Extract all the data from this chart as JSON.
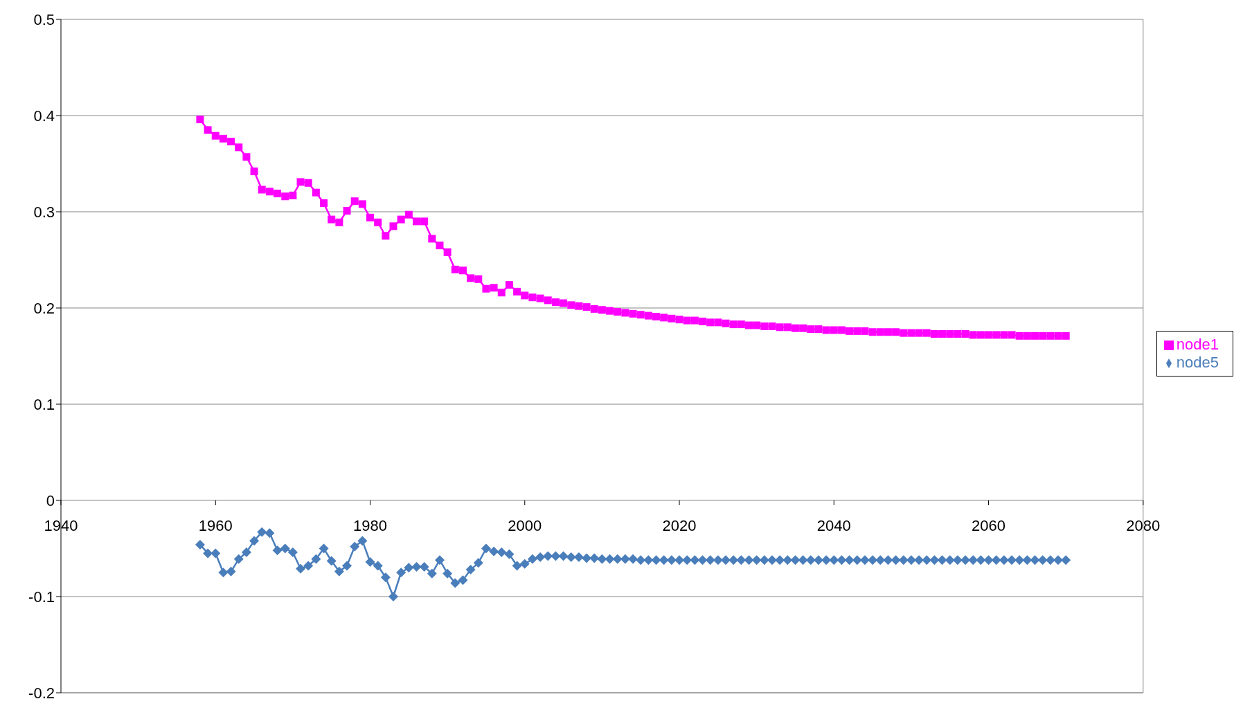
{
  "chart_data": {
    "type": "line",
    "x": [
      1958,
      1959,
      1960,
      1961,
      1962,
      1963,
      1964,
      1965,
      1966,
      1967,
      1968,
      1969,
      1970,
      1971,
      1972,
      1973,
      1974,
      1975,
      1976,
      1977,
      1978,
      1979,
      1980,
      1981,
      1982,
      1983,
      1984,
      1985,
      1986,
      1987,
      1988,
      1989,
      1990,
      1991,
      1992,
      1993,
      1994,
      1995,
      1996,
      1997,
      1998,
      1999,
      2000,
      2001,
      2002,
      2003,
      2004,
      2005,
      2006,
      2007,
      2008,
      2009,
      2010,
      2011,
      2012,
      2013,
      2014,
      2015,
      2016,
      2017,
      2018,
      2019,
      2020,
      2021,
      2022,
      2023,
      2024,
      2025,
      2026,
      2027,
      2028,
      2029,
      2030,
      2031,
      2032,
      2033,
      2034,
      2035,
      2036,
      2037,
      2038,
      2039,
      2040,
      2041,
      2042,
      2043,
      2044,
      2045,
      2046,
      2047,
      2048,
      2049,
      2050,
      2051,
      2052,
      2053,
      2054,
      2055,
      2056,
      2057,
      2058,
      2059,
      2060,
      2061,
      2062,
      2063,
      2064,
      2065,
      2066,
      2067,
      2068,
      2069,
      2070
    ],
    "series": [
      {
        "name": "node1",
        "color": "#ff00ff",
        "marker": "square",
        "values": [
          0.396,
          0.385,
          0.379,
          0.376,
          0.373,
          0.367,
          0.357,
          0.342,
          0.323,
          0.321,
          0.319,
          0.316,
          0.317,
          0.331,
          0.33,
          0.32,
          0.309,
          0.292,
          0.289,
          0.301,
          0.311,
          0.308,
          0.294,
          0.289,
          0.275,
          0.285,
          0.292,
          0.297,
          0.29,
          0.29,
          0.272,
          0.265,
          0.258,
          0.24,
          0.239,
          0.231,
          0.23,
          0.22,
          0.221,
          0.216,
          0.224,
          0.217,
          0.213,
          0.211,
          0.21,
          0.208,
          0.206,
          0.205,
          0.203,
          0.202,
          0.201,
          0.199,
          0.198,
          0.197,
          0.196,
          0.195,
          0.194,
          0.193,
          0.192,
          0.191,
          0.19,
          0.189,
          0.188,
          0.187,
          0.187,
          0.186,
          0.185,
          0.185,
          0.184,
          0.183,
          0.183,
          0.182,
          0.182,
          0.181,
          0.181,
          0.18,
          0.18,
          0.179,
          0.179,
          0.178,
          0.178,
          0.177,
          0.177,
          0.177,
          0.176,
          0.176,
          0.176,
          0.175,
          0.175,
          0.175,
          0.175,
          0.174,
          0.174,
          0.174,
          0.174,
          0.173,
          0.173,
          0.173,
          0.173,
          0.173,
          0.172,
          0.172,
          0.172,
          0.172,
          0.172,
          0.172,
          0.171,
          0.171,
          0.171,
          0.171,
          0.171,
          0.171,
          0.171
        ]
      },
      {
        "name": "node5",
        "color": "#4a7ebb",
        "marker": "diamond",
        "values": [
          -0.046,
          -0.055,
          -0.055,
          -0.075,
          -0.074,
          -0.061,
          -0.054,
          -0.042,
          -0.033,
          -0.034,
          -0.052,
          -0.05,
          -0.054,
          -0.071,
          -0.068,
          -0.061,
          -0.05,
          -0.063,
          -0.074,
          -0.068,
          -0.048,
          -0.042,
          -0.064,
          -0.068,
          -0.08,
          -0.1,
          -0.075,
          -0.07,
          -0.069,
          -0.069,
          -0.076,
          -0.062,
          -0.076,
          -0.086,
          -0.083,
          -0.072,
          -0.065,
          -0.05,
          -0.053,
          -0.054,
          -0.056,
          -0.068,
          -0.066,
          -0.061,
          -0.059,
          -0.058,
          -0.058,
          -0.058,
          -0.059,
          -0.059,
          -0.06,
          -0.06,
          -0.061,
          -0.061,
          -0.061,
          -0.061,
          -0.061,
          -0.062,
          -0.062,
          -0.062,
          -0.062,
          -0.062,
          -0.062,
          -0.062,
          -0.062,
          -0.062,
          -0.062,
          -0.062,
          -0.062,
          -0.062,
          -0.062,
          -0.062,
          -0.062,
          -0.062,
          -0.062,
          -0.062,
          -0.062,
          -0.062,
          -0.062,
          -0.062,
          -0.062,
          -0.062,
          -0.062,
          -0.062,
          -0.062,
          -0.062,
          -0.062,
          -0.062,
          -0.062,
          -0.062,
          -0.062,
          -0.062,
          -0.062,
          -0.062,
          -0.062,
          -0.062,
          -0.062,
          -0.062,
          -0.062,
          -0.062,
          -0.062,
          -0.062,
          -0.062,
          -0.062,
          -0.062,
          -0.062,
          -0.062,
          -0.062,
          -0.062,
          -0.062,
          -0.062,
          -0.062,
          -0.062
        ]
      }
    ],
    "xlim": [
      1940,
      2080
    ],
    "xticks": [
      1940,
      1960,
      1980,
      2000,
      2020,
      2040,
      2060,
      2080
    ],
    "ylim": [
      -0.2,
      0.5
    ],
    "yticks": [
      -0.2,
      -0.1,
      0,
      0.1,
      0.2,
      0.3,
      0.4,
      0.5
    ],
    "grid": "y",
    "legend": "right"
  }
}
